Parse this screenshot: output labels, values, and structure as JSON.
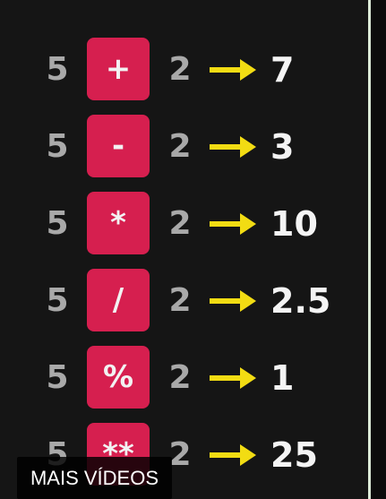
{
  "rows": [
    {
      "left": "5",
      "operator": "+",
      "right": "2",
      "result": "7"
    },
    {
      "left": "5",
      "operator": "-",
      "right": "2",
      "result": "3"
    },
    {
      "left": "5",
      "operator": "*",
      "right": "2",
      "result": "10"
    },
    {
      "left": "5",
      "operator": "/",
      "right": "2",
      "result": "2.5"
    },
    {
      "left": "5",
      "operator": "%",
      "right": "2",
      "result": "1"
    },
    {
      "left": "5",
      "operator": "**",
      "right": "2",
      "result": "25"
    }
  ],
  "more_videos_label": "MAIS VÍDEOS",
  "colors": {
    "background": "#151515",
    "operator_box": "#d61f4f",
    "arrow": "#f2dc13",
    "operand_text": "#a9a9a9",
    "result_text": "#f4f4f4"
  },
  "icons": {
    "arrow": "arrow-right-icon"
  }
}
